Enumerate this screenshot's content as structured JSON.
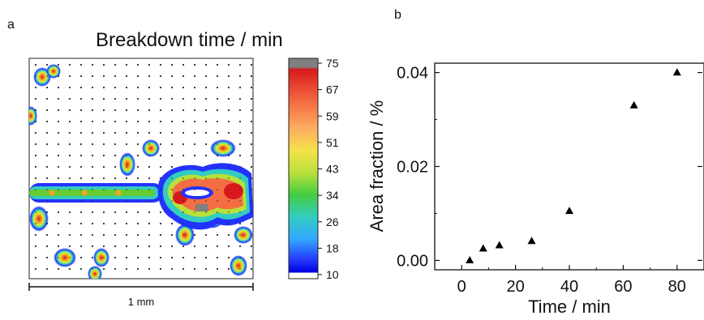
{
  "panel_a": {
    "label": "a",
    "title": "Breakdown time / min",
    "scalebar_label": "1 mm",
    "colorbar_ticks": [
      "75",
      "67",
      "59",
      "51",
      "43",
      "34",
      "26",
      "18",
      "10"
    ],
    "colorbar_colors": [
      "#808080",
      "#d7191c",
      "#f46d43",
      "#fdae61",
      "#fee08b",
      "#d9ef3a",
      "#66cc33",
      "#33cc99",
      "#33ccff",
      "#3399ff",
      "#0000ff",
      "#ffffff"
    ]
  },
  "panel_b": {
    "label": "b"
  },
  "chart_data": [
    {
      "type": "heatmap",
      "title": "Breakdown time / min",
      "colorbar_range": [
        10,
        75
      ],
      "colorbar_ticks": [
        75,
        67,
        59,
        51,
        43,
        34,
        26,
        18,
        10
      ],
      "scale_bar": "1 mm"
    },
    {
      "type": "scatter",
      "xlabel": "Time / min",
      "ylabel": "Area fraction / %",
      "x_ticks": [
        0,
        20,
        40,
        60,
        80
      ],
      "y_ticks": [
        0.0,
        0.02,
        0.04
      ],
      "x_tick_labels": [
        "0",
        "20",
        "40",
        "60",
        "80"
      ],
      "y_tick_labels": [
        "0.00",
        "0.02",
        "0.04"
      ],
      "xlim": [
        -10,
        90
      ],
      "ylim": [
        -0.002,
        0.042
      ],
      "grid": false,
      "series": [
        {
          "marker": "triangle",
          "color": "#000000",
          "x": [
            3,
            8,
            14,
            26,
            40,
            64,
            80
          ],
          "y": [
            0.0,
            0.0025,
            0.0032,
            0.0041,
            0.0105,
            0.033,
            0.04
          ]
        }
      ]
    }
  ]
}
